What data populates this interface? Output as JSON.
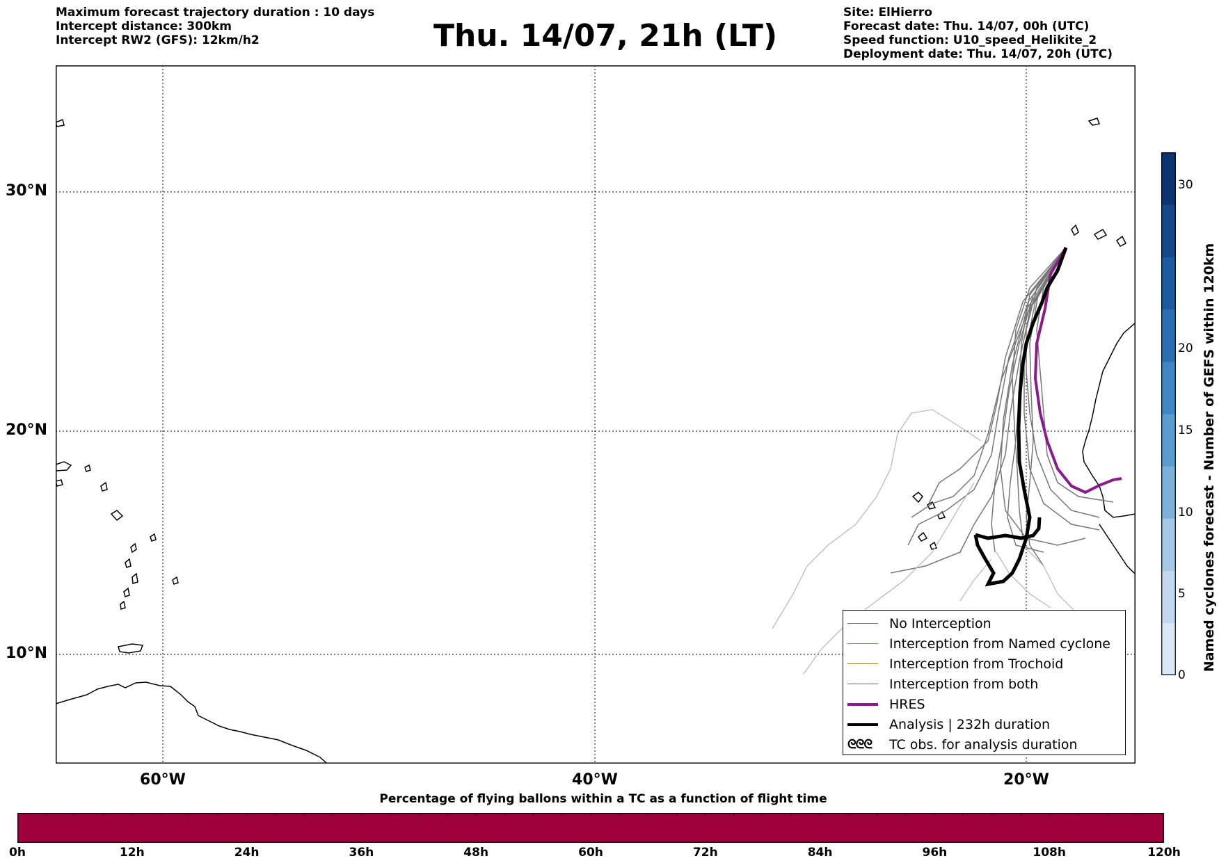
{
  "header": {
    "left_lines": [
      "Maximum forecast trajectory duration : 10 days",
      "Intercept distance: 300km",
      "Intercept RW2 (GFS):  12km/h2"
    ],
    "title": "Thu. 14/07, 21h (LT)",
    "right_lines": [
      "Site: ElHierro",
      "Forecast date: Thu. 14/07, 00h (UTC)",
      "Speed function: U10_speed_Helikite_2",
      "Deployment date: Thu. 14/07, 20h (UTC)"
    ]
  },
  "map": {
    "lat_labels": [
      "30°N",
      "20°N",
      "10°N"
    ],
    "lon_labels": [
      "60°W",
      "40°W",
      "20°W"
    ],
    "gridlines": true
  },
  "legend": {
    "items": [
      {
        "label": "No Interception",
        "color": "#777777",
        "style": "line"
      },
      {
        "label": "Interception from Named cyclone",
        "color": "#e8642c",
        "style": "line"
      },
      {
        "label": "Interception from Trochoid",
        "color": "#8a8a2a",
        "style": "line"
      },
      {
        "label": "Interception from both",
        "color": "#2e8b2e",
        "style": "line"
      },
      {
        "label": "HRES",
        "color": "#8b1a8b",
        "style": "thick"
      },
      {
        "label": "Analysis | 232h duration",
        "color": "#000000",
        "style": "thick"
      },
      {
        "label": "TC obs. for analysis duration",
        "color": "#000000",
        "style": "tc",
        "symbol": "ᘓᘓᘓ"
      }
    ]
  },
  "colorbar_vertical": {
    "title": "Named cyclones forecast - Number of GEFS within 120km",
    "ticks": [
      "0",
      "5",
      "10",
      "15",
      "20",
      "30"
    ],
    "colors": [
      "#d8e6f5",
      "#c3d8ee",
      "#a6c8e4",
      "#7db1da",
      "#5a9ccf",
      "#3f87c4",
      "#2a6fb4",
      "#1c5aa2",
      "#134787",
      "#0c3470"
    ]
  },
  "colorbar_horizontal": {
    "title": "Percentage of flying ballons within a TC as a function of flight time",
    "ticks": [
      "0h",
      "12h",
      "24h",
      "36h",
      "48h",
      "60h",
      "72h",
      "84h",
      "96h",
      "108h",
      "120h"
    ],
    "color": "#9d003c"
  }
}
